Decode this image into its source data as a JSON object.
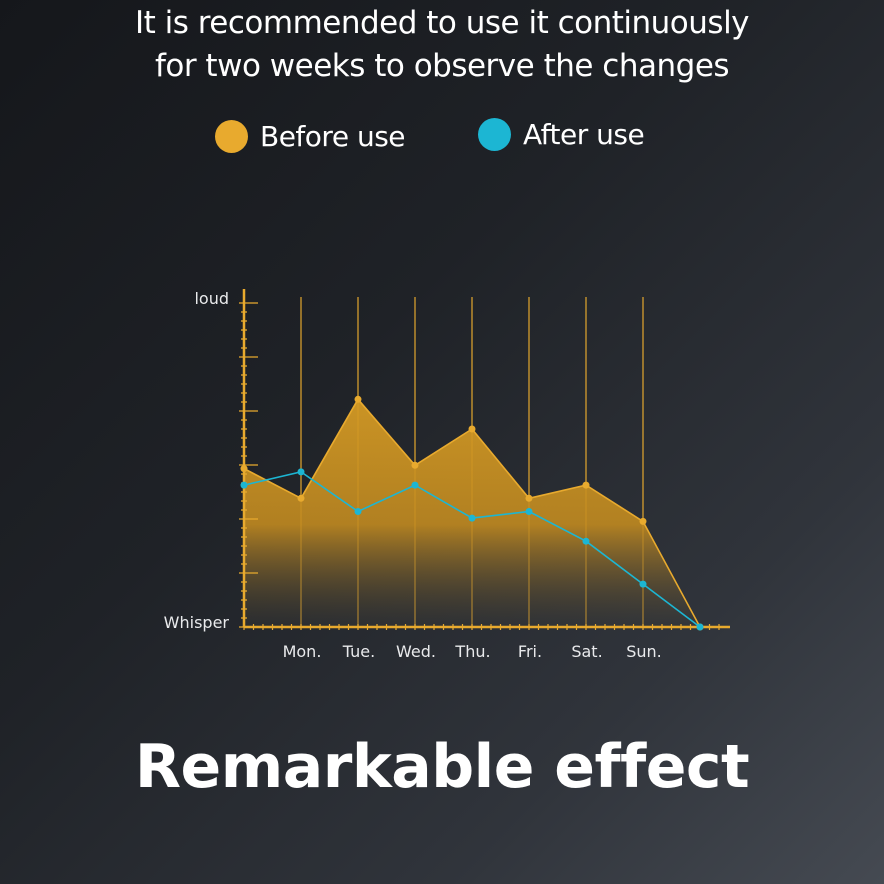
{
  "title_lines": [
    "It is recommended to use it continuously",
    "for two weeks to observe the changes"
  ],
  "headline": "Remarkable effect",
  "colors": {
    "before": "#e8aa2e",
    "after": "#1cb6d3",
    "axis": "#e8aa2e"
  },
  "chart_data": {
    "type": "area",
    "title": "",
    "xlabel": "",
    "ylabel": "",
    "ylim": [
      0,
      10
    ],
    "y_axis_labels": {
      "min": "Whisper",
      "max": "loud"
    },
    "grid": "vertical lines at each day",
    "legend_placement": "top",
    "categories": [
      "",
      "Mon.",
      "Tue.",
      "Wed.",
      "Thu.",
      "Fri.",
      "Sat.",
      "Sun.",
      ""
    ],
    "series": [
      {
        "name": "Before use",
        "color": "#e8aa2e",
        "values": [
          4.8,
          3.9,
          6.9,
          4.9,
          6.0,
          3.9,
          4.3,
          3.2,
          0
        ]
      },
      {
        "name": "After use",
        "color": "#1cb6d3",
        "values": [
          4.3,
          4.7,
          3.5,
          4.3,
          3.3,
          3.5,
          2.6,
          1.3,
          0
        ]
      }
    ]
  }
}
